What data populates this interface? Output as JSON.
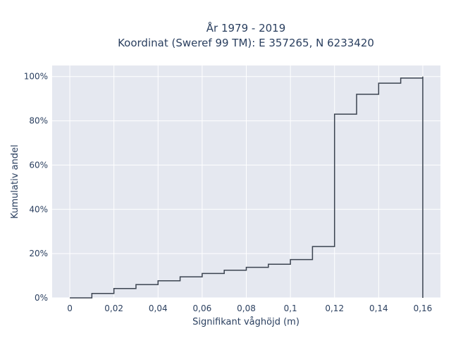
{
  "chart_data": {
    "type": "line",
    "title_line1": "År 1979 - 2019",
    "title_line2": "Koordinat (Sweref 99 TM): E 357265, N 6233420",
    "xlabel": "Signifikant våghöjd (m)",
    "ylabel": "Kumulativ andel",
    "xlim": [
      -0.008,
      0.168
    ],
    "ylim": [
      0,
      1.05
    ],
    "x_ticks": [
      0,
      0.02,
      0.04,
      0.06,
      0.08,
      0.1,
      0.12,
      0.14,
      0.16
    ],
    "x_tick_labels": [
      "0",
      "0,02",
      "0,04",
      "0,06",
      "0,08",
      "0,1",
      "0,12",
      "0,14",
      "0,16"
    ],
    "y_ticks": [
      0,
      0.2,
      0.4,
      0.6,
      0.8,
      1.0
    ],
    "y_tick_labels": [
      "0%",
      "20%",
      "40%",
      "60%",
      "80%",
      "100%"
    ],
    "step": "post",
    "grid": true,
    "line_color": "#3b4350",
    "plot_bg": "#e5e8f0",
    "series": [
      {
        "x": [
          0,
          0.01,
          0.02,
          0.03,
          0.04,
          0.05,
          0.06,
          0.07,
          0.08,
          0.09,
          0.1,
          0.11,
          0.12,
          0.13,
          0.14,
          0.15,
          0.16,
          0.16
        ],
        "y": [
          0,
          0.02,
          0.042,
          0.06,
          0.077,
          0.095,
          0.11,
          0.125,
          0.138,
          0.152,
          0.173,
          0.232,
          0.83,
          0.92,
          0.97,
          0.993,
          1.0,
          0
        ]
      }
    ]
  }
}
